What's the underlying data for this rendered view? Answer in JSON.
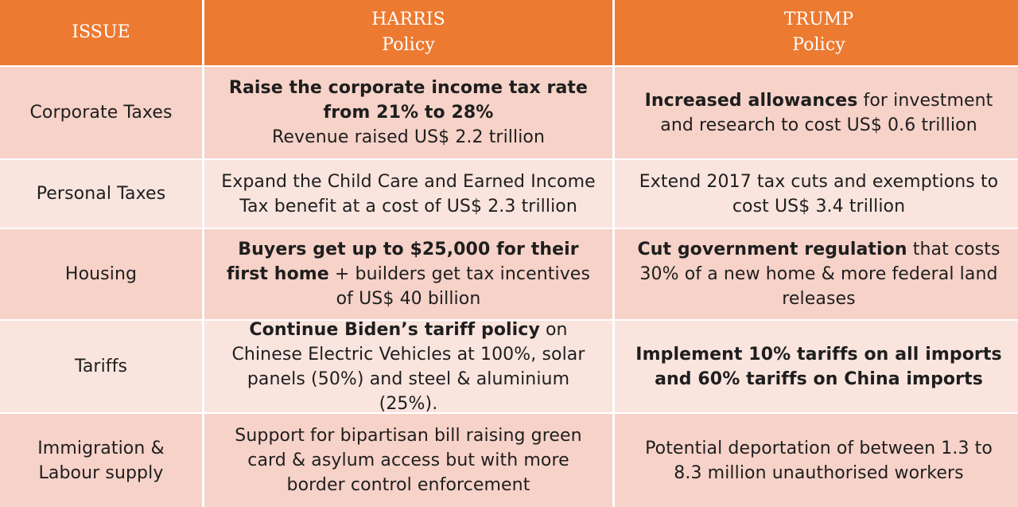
{
  "header": {
    "issue": "ISSUE",
    "harris_name": "HARRIS",
    "harris_sub": "Policy",
    "trump_name": "TRUMP",
    "trump_sub": "Policy"
  },
  "rows": [
    {
      "issue": "Corporate Taxes",
      "harris": {
        "bold": "Raise the corporate income tax rate from 21% to 28%",
        "normal": "Revenue raised US$ 2.2 trillion"
      },
      "trump": {
        "bold": "Increased allowances",
        "normal": " for investment and research to cost US$ 0.6 trillion"
      }
    },
    {
      "issue": "Personal Taxes",
      "harris": {
        "normal": "Expand the Child Care and Earned Income Tax benefit at a cost of US$ 2.3 trillion"
      },
      "trump": {
        "normal": "Extend 2017 tax cuts and exemptions to cost US$ 3.4 trillion"
      }
    },
    {
      "issue": "Housing",
      "harris": {
        "bold": "Buyers get up to $25,000 for their first home",
        "normal": " + builders get tax incentives of US$ 40 billion"
      },
      "trump": {
        "bold": "Cut government regulation",
        "normal": " that costs 30% of a new home & more federal land releases"
      }
    },
    {
      "issue": "Tariffs",
      "harris": {
        "bold": "Continue Biden’s tariff policy",
        "normal": " on Chinese Electric Vehicles at 100%, solar panels (50%) and steel & aluminium (25%)."
      },
      "trump": {
        "bold": "Implement 10% tariffs on all imports and 60% tariffs on China imports"
      }
    },
    {
      "issue": "Immigration & Labour supply",
      "harris": {
        "normal": "Support for bipartisan bill raising green card & asylum access but with more border control enforcement"
      },
      "trump": {
        "normal": "Potential deportation of between 1.3 to 8.3 million unauthorised workers"
      }
    }
  ],
  "colors": {
    "header": "#ec7a31",
    "row_dark": "#f6d2c8",
    "row_light": "#f9e4de"
  }
}
